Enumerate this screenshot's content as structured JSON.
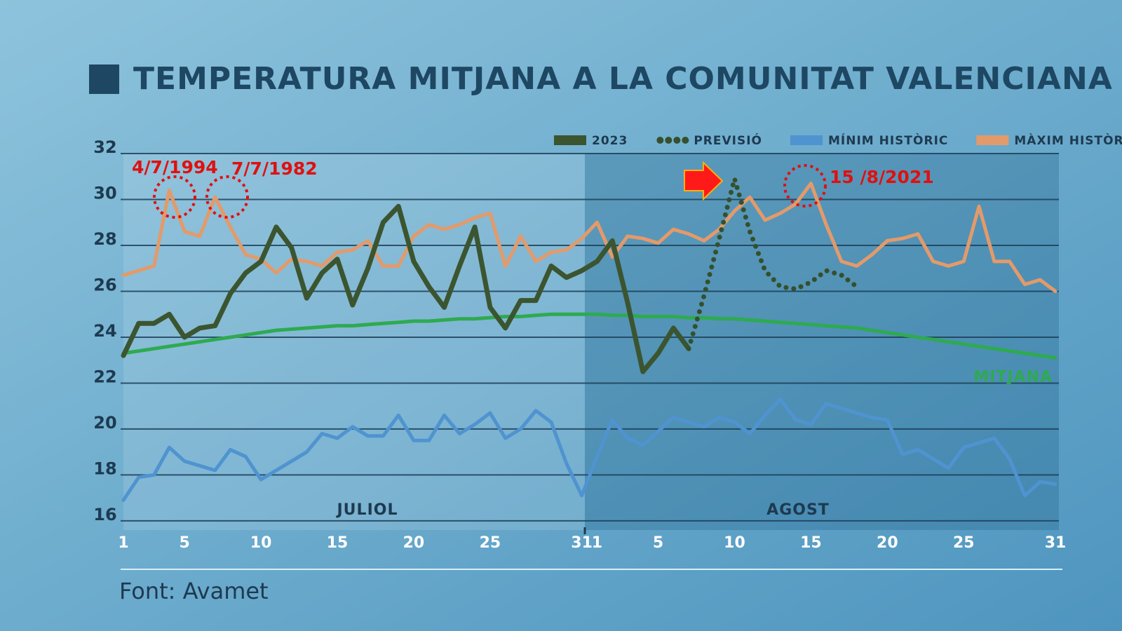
{
  "chart_data": {
    "type": "line",
    "title": "TEMPERATURA MITJANA A LA COMUNITAT VALENCIANA (ºC)",
    "source": "Font: Avamet",
    "months": [
      "JULIOL",
      "AGOST"
    ],
    "annotations": [
      "4/7/1994",
      "7/7/1982",
      "15 /8/2021"
    ],
    "categories": [
      "1",
      null,
      null,
      null,
      "5",
      null,
      null,
      null,
      null,
      "10",
      null,
      null,
      null,
      null,
      "15",
      null,
      null,
      null,
      null,
      "20",
      null,
      null,
      null,
      null,
      "25",
      null,
      null,
      null,
      null,
      null,
      "31",
      "1",
      null,
      null,
      null,
      "5",
      null,
      null,
      null,
      null,
      "10",
      null,
      null,
      null,
      null,
      "15",
      null,
      null,
      null,
      null,
      "20",
      null,
      null,
      null,
      null,
      "25",
      null,
      null,
      null,
      null,
      null,
      "31"
    ],
    "ylim": [
      15.6,
      32
    ],
    "yticks": [
      16,
      18,
      20,
      22,
      24,
      26,
      28,
      30,
      32
    ],
    "grid": true,
    "series": [
      {
        "name": "2023",
        "color": "#3b5530",
        "style": "solid",
        "width": 7,
        "values": [
          23.2,
          24.6,
          24.6,
          25.0,
          24.0,
          24.4,
          24.5,
          25.9,
          26.8,
          27.3,
          28.8,
          27.9,
          25.7,
          26.8,
          27.4,
          25.4,
          27.0,
          29.0,
          29.7,
          27.3,
          26.2,
          25.3,
          27.1,
          28.8,
          25.3,
          24.4,
          25.6,
          25.6,
          27.1,
          26.6,
          26.9,
          27.3,
          28.2,
          25.5,
          22.5,
          23.3,
          24.4,
          23.5,
          null,
          null,
          null,
          null,
          null,
          null,
          null,
          null,
          null,
          null,
          null,
          null,
          null,
          null,
          null,
          null,
          null,
          null,
          null,
          null,
          null,
          null,
          null,
          null
        ]
      },
      {
        "name": "PREVISIÓ",
        "color": "#34502d",
        "style": "dotted",
        "width": 7,
        "values": [
          null,
          null,
          null,
          null,
          null,
          null,
          null,
          null,
          null,
          null,
          null,
          null,
          null,
          null,
          null,
          null,
          null,
          null,
          null,
          null,
          null,
          null,
          null,
          null,
          null,
          null,
          null,
          null,
          null,
          null,
          null,
          null,
          null,
          null,
          null,
          null,
          null,
          23.5,
          25.8,
          28.3,
          30.9,
          28.6,
          26.9,
          26.2,
          26.1,
          26.4,
          26.9,
          26.7,
          26.2,
          null,
          null,
          null,
          null,
          null,
          null,
          null,
          null,
          null,
          null,
          null,
          null,
          null
        ]
      },
      {
        "name": "MÍNIM HISTÒRIC",
        "color": "#4f93d0",
        "style": "solid",
        "width": 5,
        "values": [
          16.9,
          17.9,
          18.0,
          19.2,
          18.6,
          18.4,
          18.2,
          19.1,
          18.8,
          17.8,
          18.2,
          18.6,
          19.0,
          19.8,
          19.6,
          20.1,
          19.7,
          19.7,
          20.6,
          19.5,
          19.5,
          20.6,
          19.8,
          20.2,
          20.7,
          19.6,
          20.0,
          20.8,
          20.3,
          18.5,
          17.1,
          18.8,
          20.4,
          19.6,
          19.3,
          19.9,
          20.5,
          20.3,
          20.1,
          20.5,
          20.3,
          19.8,
          20.6,
          21.3,
          20.4,
          20.2,
          21.1,
          20.9,
          20.7,
          20.5,
          20.4,
          18.9,
          19.1,
          18.7,
          18.3,
          19.2,
          19.4,
          19.6,
          18.7,
          17.1,
          17.7,
          17.6
        ]
      },
      {
        "name": "MÀXIM HISTÒRIC",
        "color": "#e39a6a",
        "style": "solid",
        "width": 5,
        "values": [
          26.7,
          26.9,
          27.1,
          30.4,
          28.6,
          28.4,
          30.1,
          28.8,
          27.6,
          27.4,
          26.8,
          27.4,
          27.3,
          27.1,
          27.7,
          27.8,
          28.2,
          27.1,
          27.1,
          28.4,
          28.9,
          28.7,
          28.9,
          29.2,
          29.4,
          27.1,
          28.4,
          27.3,
          27.7,
          27.8,
          28.3,
          29.0,
          27.5,
          28.4,
          28.3,
          28.1,
          28.7,
          28.5,
          28.2,
          28.7,
          29.5,
          30.1,
          29.1,
          29.4,
          29.8,
          30.7,
          28.9,
          27.3,
          27.1,
          27.6,
          28.2,
          28.3,
          28.5,
          27.3,
          27.1,
          27.3,
          29.7,
          27.3,
          27.3,
          26.3,
          26.5,
          26.0
        ]
      },
      {
        "name": "MITJANA",
        "color": "#2eaa50",
        "style": "solid",
        "width": 5,
        "label_position": "end",
        "values": [
          23.3,
          23.4,
          23.5,
          23.6,
          23.7,
          23.8,
          23.9,
          24.0,
          24.1,
          24.2,
          24.3,
          24.35,
          24.4,
          24.45,
          24.5,
          24.5,
          24.55,
          24.6,
          24.65,
          24.7,
          24.7,
          24.75,
          24.8,
          24.8,
          24.85,
          24.9,
          24.9,
          24.95,
          25.0,
          25.0,
          25.0,
          25.0,
          24.95,
          24.95,
          24.9,
          24.9,
          24.9,
          24.85,
          24.85,
          24.8,
          24.8,
          24.75,
          24.7,
          24.65,
          24.6,
          24.55,
          24.5,
          24.45,
          24.4,
          24.3,
          24.2,
          24.1,
          24.0,
          23.9,
          23.8,
          23.7,
          23.6,
          23.5,
          23.4,
          23.3,
          23.2,
          23.1
        ]
      }
    ]
  }
}
